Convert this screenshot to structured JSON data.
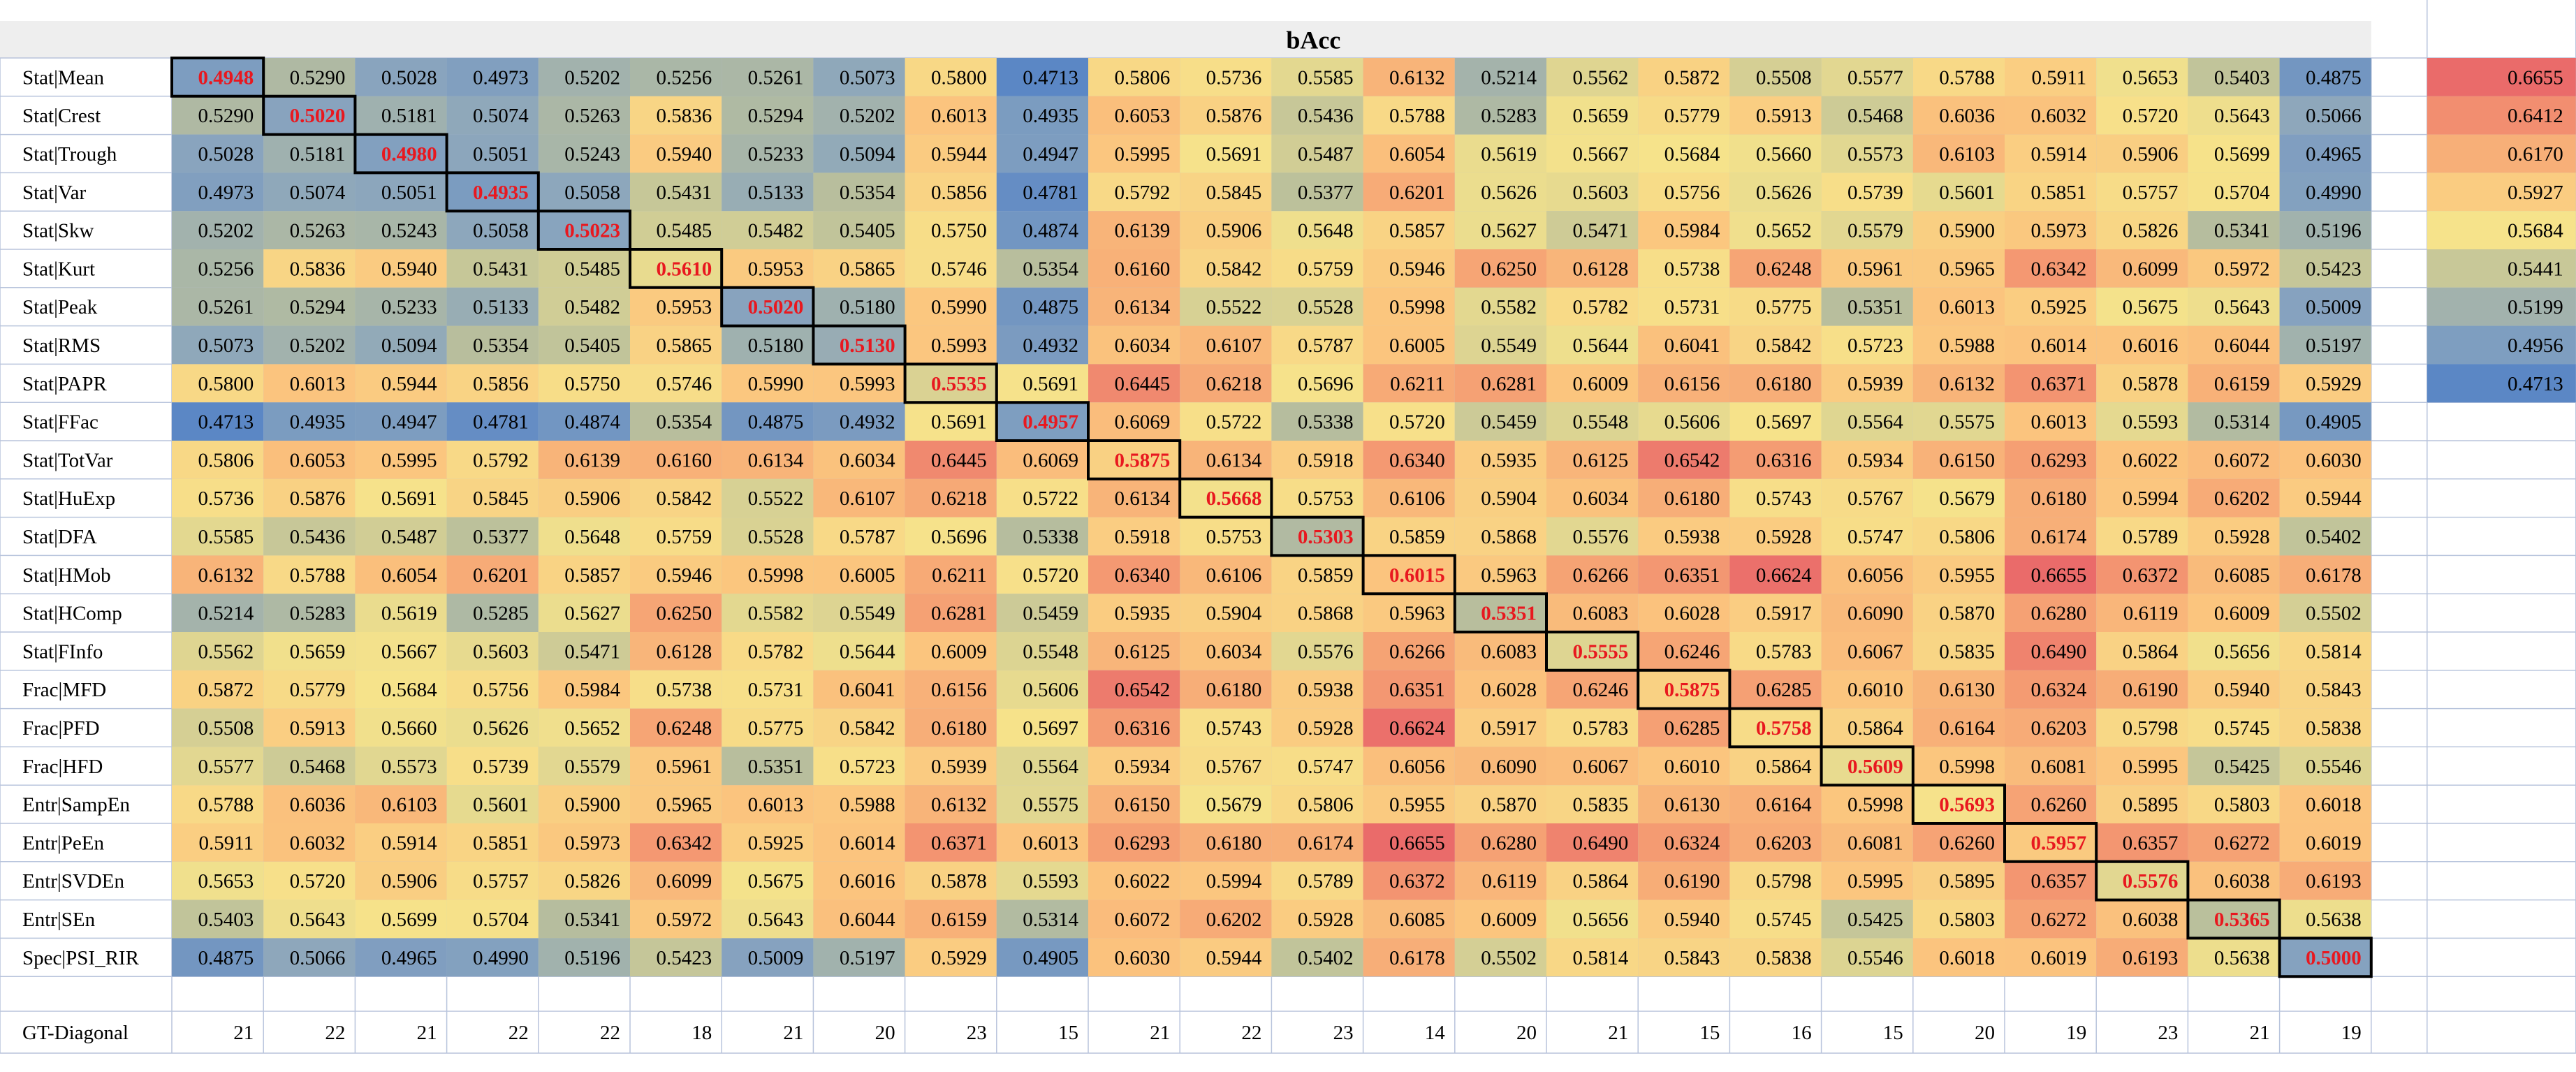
{
  "chart_data": {
    "type": "heatmap",
    "title": "bAcc",
    "row_labels": [
      "Stat|Mean",
      "Stat|Crest",
      "Stat|Trough",
      "Stat|Var",
      "Stat|Skw",
      "Stat|Kurt",
      "Stat|Peak",
      "Stat|RMS",
      "Stat|PAPR",
      "Stat|FFac",
      "Stat|TotVar",
      "Stat|HuExp",
      "Stat|DFA",
      "Stat|HMob",
      "Stat|HComp",
      "Stat|FInfo",
      "Frac|MFD",
      "Frac|PFD",
      "Frac|HFD",
      "Entr|SampEn",
      "Entr|PeEn",
      "Entr|SVDEn",
      "Entr|SEn",
      "Spec|PSI_RIR"
    ],
    "values": [
      [
        "0.4948",
        "0.5290",
        "0.5028",
        "0.4973",
        "0.5202",
        "0.5256",
        "0.5261",
        "0.5073",
        "0.5800",
        "0.4713",
        "0.5806",
        "0.5736",
        "0.5585",
        "0.6132",
        "0.5214",
        "0.5562",
        "0.5872",
        "0.5508",
        "0.5577",
        "0.5788",
        "0.5911",
        "0.5653",
        "0.5403",
        "0.4875"
      ],
      [
        "0.5290",
        "0.5020",
        "0.5181",
        "0.5074",
        "0.5263",
        "0.5836",
        "0.5294",
        "0.5202",
        "0.6013",
        "0.4935",
        "0.6053",
        "0.5876",
        "0.5436",
        "0.5788",
        "0.5283",
        "0.5659",
        "0.5779",
        "0.5913",
        "0.5468",
        "0.6036",
        "0.6032",
        "0.5720",
        "0.5643",
        "0.5066"
      ],
      [
        "0.5028",
        "0.5181",
        "0.4980",
        "0.5051",
        "0.5243",
        "0.5940",
        "0.5233",
        "0.5094",
        "0.5944",
        "0.4947",
        "0.5995",
        "0.5691",
        "0.5487",
        "0.6054",
        "0.5619",
        "0.5667",
        "0.5684",
        "0.5660",
        "0.5573",
        "0.6103",
        "0.5914",
        "0.5906",
        "0.5699",
        "0.4965"
      ],
      [
        "0.4973",
        "0.5074",
        "0.5051",
        "0.4935",
        "0.5058",
        "0.5431",
        "0.5133",
        "0.5354",
        "0.5856",
        "0.4781",
        "0.5792",
        "0.5845",
        "0.5377",
        "0.6201",
        "0.5626",
        "0.5603",
        "0.5756",
        "0.5626",
        "0.5739",
        "0.5601",
        "0.5851",
        "0.5757",
        "0.5704",
        "0.4990"
      ],
      [
        "0.5202",
        "0.5263",
        "0.5243",
        "0.5058",
        "0.5023",
        "0.5485",
        "0.5482",
        "0.5405",
        "0.5750",
        "0.4874",
        "0.6139",
        "0.5906",
        "0.5648",
        "0.5857",
        "0.5627",
        "0.5471",
        "0.5984",
        "0.5652",
        "0.5579",
        "0.5900",
        "0.5973",
        "0.5826",
        "0.5341",
        "0.5196"
      ],
      [
        "0.5256",
        "0.5836",
        "0.5940",
        "0.5431",
        "0.5485",
        "0.5610",
        "0.5953",
        "0.5865",
        "0.5746",
        "0.5354",
        "0.6160",
        "0.5842",
        "0.5759",
        "0.5946",
        "0.6250",
        "0.6128",
        "0.5738",
        "0.6248",
        "0.5961",
        "0.5965",
        "0.6342",
        "0.6099",
        "0.5972",
        "0.5423"
      ],
      [
        "0.5261",
        "0.5294",
        "0.5233",
        "0.5133",
        "0.5482",
        "0.5953",
        "0.5020",
        "0.5180",
        "0.5990",
        "0.4875",
        "0.6134",
        "0.5522",
        "0.5528",
        "0.5998",
        "0.5582",
        "0.5782",
        "0.5731",
        "0.5775",
        "0.5351",
        "0.6013",
        "0.5925",
        "0.5675",
        "0.5643",
        "0.5009"
      ],
      [
        "0.5073",
        "0.5202",
        "0.5094",
        "0.5354",
        "0.5405",
        "0.5865",
        "0.5180",
        "0.5130",
        "0.5993",
        "0.4932",
        "0.6034",
        "0.6107",
        "0.5787",
        "0.6005",
        "0.5549",
        "0.5644",
        "0.6041",
        "0.5842",
        "0.5723",
        "0.5988",
        "0.6014",
        "0.6016",
        "0.6044",
        "0.5197"
      ],
      [
        "0.5800",
        "0.6013",
        "0.5944",
        "0.5856",
        "0.5750",
        "0.5746",
        "0.5990",
        "0.5993",
        "0.5535",
        "0.5691",
        "0.6445",
        "0.6218",
        "0.5696",
        "0.6211",
        "0.6281",
        "0.6009",
        "0.6156",
        "0.6180",
        "0.5939",
        "0.6132",
        "0.6371",
        "0.5878",
        "0.6159",
        "0.5929"
      ],
      [
        "0.4713",
        "0.4935",
        "0.4947",
        "0.4781",
        "0.4874",
        "0.5354",
        "0.4875",
        "0.4932",
        "0.5691",
        "0.4957",
        "0.6069",
        "0.5722",
        "0.5338",
        "0.5720",
        "0.5459",
        "0.5548",
        "0.5606",
        "0.5697",
        "0.5564",
        "0.5575",
        "0.6013",
        "0.5593",
        "0.5314",
        "0.4905"
      ],
      [
        "0.5806",
        "0.6053",
        "0.5995",
        "0.5792",
        "0.6139",
        "0.6160",
        "0.6134",
        "0.6034",
        "0.6445",
        "0.6069",
        "0.5875",
        "0.6134",
        "0.5918",
        "0.6340",
        "0.5935",
        "0.6125",
        "0.6542",
        "0.6316",
        "0.5934",
        "0.6150",
        "0.6293",
        "0.6022",
        "0.6072",
        "0.6030"
      ],
      [
        "0.5736",
        "0.5876",
        "0.5691",
        "0.5845",
        "0.5906",
        "0.5842",
        "0.5522",
        "0.6107",
        "0.6218",
        "0.5722",
        "0.6134",
        "0.5668",
        "0.5753",
        "0.6106",
        "0.5904",
        "0.6034",
        "0.6180",
        "0.5743",
        "0.5767",
        "0.5679",
        "0.6180",
        "0.5994",
        "0.6202",
        "0.5944"
      ],
      [
        "0.5585",
        "0.5436",
        "0.5487",
        "0.5377",
        "0.5648",
        "0.5759",
        "0.5528",
        "0.5787",
        "0.5696",
        "0.5338",
        "0.5918",
        "0.5753",
        "0.5303",
        "0.5859",
        "0.5868",
        "0.5576",
        "0.5938",
        "0.5928",
        "0.5747",
        "0.5806",
        "0.6174",
        "0.5789",
        "0.5928",
        "0.5402"
      ],
      [
        "0.6132",
        "0.5788",
        "0.6054",
        "0.6201",
        "0.5857",
        "0.5946",
        "0.5998",
        "0.6005",
        "0.6211",
        "0.5720",
        "0.6340",
        "0.6106",
        "0.5859",
        "0.6015",
        "0.5963",
        "0.6266",
        "0.6351",
        "0.6624",
        "0.6056",
        "0.5955",
        "0.6655",
        "0.6372",
        "0.6085",
        "0.6178"
      ],
      [
        "0.5214",
        "0.5283",
        "0.5619",
        "0.5285",
        "0.5627",
        "0.6250",
        "0.5582",
        "0.5549",
        "0.6281",
        "0.5459",
        "0.5935",
        "0.5904",
        "0.5868",
        "0.5963",
        "0.5351",
        "0.6083",
        "0.6028",
        "0.5917",
        "0.6090",
        "0.5870",
        "0.6280",
        "0.6119",
        "0.6009",
        "0.5502"
      ],
      [
        "0.5562",
        "0.5659",
        "0.5667",
        "0.5603",
        "0.5471",
        "0.6128",
        "0.5782",
        "0.5644",
        "0.6009",
        "0.5548",
        "0.6125",
        "0.6034",
        "0.5576",
        "0.6266",
        "0.6083",
        "0.5555",
        "0.6246",
        "0.5783",
        "0.6067",
        "0.5835",
        "0.6490",
        "0.5864",
        "0.5656",
        "0.5814"
      ],
      [
        "0.5872",
        "0.5779",
        "0.5684",
        "0.5756",
        "0.5984",
        "0.5738",
        "0.5731",
        "0.6041",
        "0.6156",
        "0.5606",
        "0.6542",
        "0.6180",
        "0.5938",
        "0.6351",
        "0.6028",
        "0.6246",
        "0.5875",
        "0.6285",
        "0.6010",
        "0.6130",
        "0.6324",
        "0.6190",
        "0.5940",
        "0.5843"
      ],
      [
        "0.5508",
        "0.5913",
        "0.5660",
        "0.5626",
        "0.5652",
        "0.6248",
        "0.5775",
        "0.5842",
        "0.6180",
        "0.5697",
        "0.6316",
        "0.5743",
        "0.5928",
        "0.6624",
        "0.5917",
        "0.5783",
        "0.6285",
        "0.5758",
        "0.5864",
        "0.6164",
        "0.6203",
        "0.5798",
        "0.5745",
        "0.5838"
      ],
      [
        "0.5577",
        "0.5468",
        "0.5573",
        "0.5739",
        "0.5579",
        "0.5961",
        "0.5351",
        "0.5723",
        "0.5939",
        "0.5564",
        "0.5934",
        "0.5767",
        "0.5747",
        "0.6056",
        "0.6090",
        "0.6067",
        "0.6010",
        "0.5864",
        "0.5609",
        "0.5998",
        "0.6081",
        "0.5995",
        "0.5425",
        "0.5546"
      ],
      [
        "0.5788",
        "0.6036",
        "0.6103",
        "0.5601",
        "0.5900",
        "0.5965",
        "0.6013",
        "0.5988",
        "0.6132",
        "0.5575",
        "0.6150",
        "0.5679",
        "0.5806",
        "0.5955",
        "0.5870",
        "0.5835",
        "0.6130",
        "0.6164",
        "0.5998",
        "0.5693",
        "0.6260",
        "0.5895",
        "0.5803",
        "0.6018"
      ],
      [
        "0.5911",
        "0.6032",
        "0.5914",
        "0.5851",
        "0.5973",
        "0.6342",
        "0.5925",
        "0.6014",
        "0.6371",
        "0.6013",
        "0.6293",
        "0.6180",
        "0.6174",
        "0.6655",
        "0.6280",
        "0.6490",
        "0.6324",
        "0.6203",
        "0.6081",
        "0.6260",
        "0.5957",
        "0.6357",
        "0.6272",
        "0.6019"
      ],
      [
        "0.5653",
        "0.5720",
        "0.5906",
        "0.5757",
        "0.5826",
        "0.6099",
        "0.5675",
        "0.6016",
        "0.5878",
        "0.5593",
        "0.6022",
        "0.5994",
        "0.5789",
        "0.6372",
        "0.6119",
        "0.5864",
        "0.6190",
        "0.5798",
        "0.5995",
        "0.5895",
        "0.6357",
        "0.5576",
        "0.6038",
        "0.6193"
      ],
      [
        "0.5403",
        "0.5643",
        "0.5699",
        "0.5704",
        "0.5341",
        "0.5972",
        "0.5643",
        "0.6044",
        "0.6159",
        "0.5314",
        "0.6072",
        "0.6202",
        "0.5928",
        "0.6085",
        "0.6009",
        "0.5656",
        "0.5940",
        "0.5745",
        "0.5425",
        "0.5803",
        "0.6272",
        "0.6038",
        "0.5365",
        "0.5638"
      ],
      [
        "0.4875",
        "0.5066",
        "0.4965",
        "0.4990",
        "0.5196",
        "0.5423",
        "0.5009",
        "0.5197",
        "0.5929",
        "0.4905",
        "0.6030",
        "0.5944",
        "0.5402",
        "0.6178",
        "0.5502",
        "0.5814",
        "0.5843",
        "0.5838",
        "0.5546",
        "0.6018",
        "0.6019",
        "0.6193",
        "0.5638",
        "0.5000"
      ]
    ],
    "diagonal_highlight_color": "#e8181f",
    "footer": {
      "label": "GT-Diagonal",
      "values": [
        "21",
        "22",
        "21",
        "22",
        "22",
        "18",
        "21",
        "20",
        "23",
        "15",
        "21",
        "22",
        "23",
        "14",
        "20",
        "21",
        "15",
        "16",
        "15",
        "20",
        "19",
        "23",
        "21",
        "19"
      ]
    },
    "color_legend": {
      "values": [
        "0.6655",
        "0.6412",
        "0.6170",
        "0.5927",
        "0.5684",
        "0.5441",
        "0.5199",
        "0.4956",
        "0.4713"
      ]
    },
    "color_scale": {
      "min": 0.4713,
      "max": 0.6655,
      "stops": [
        "#5b87c5",
        "#8aa5be",
        "#b9bf9c",
        "#f6e38b",
        "#fbc57e",
        "#f49a72",
        "#ea6b6a"
      ]
    }
  }
}
